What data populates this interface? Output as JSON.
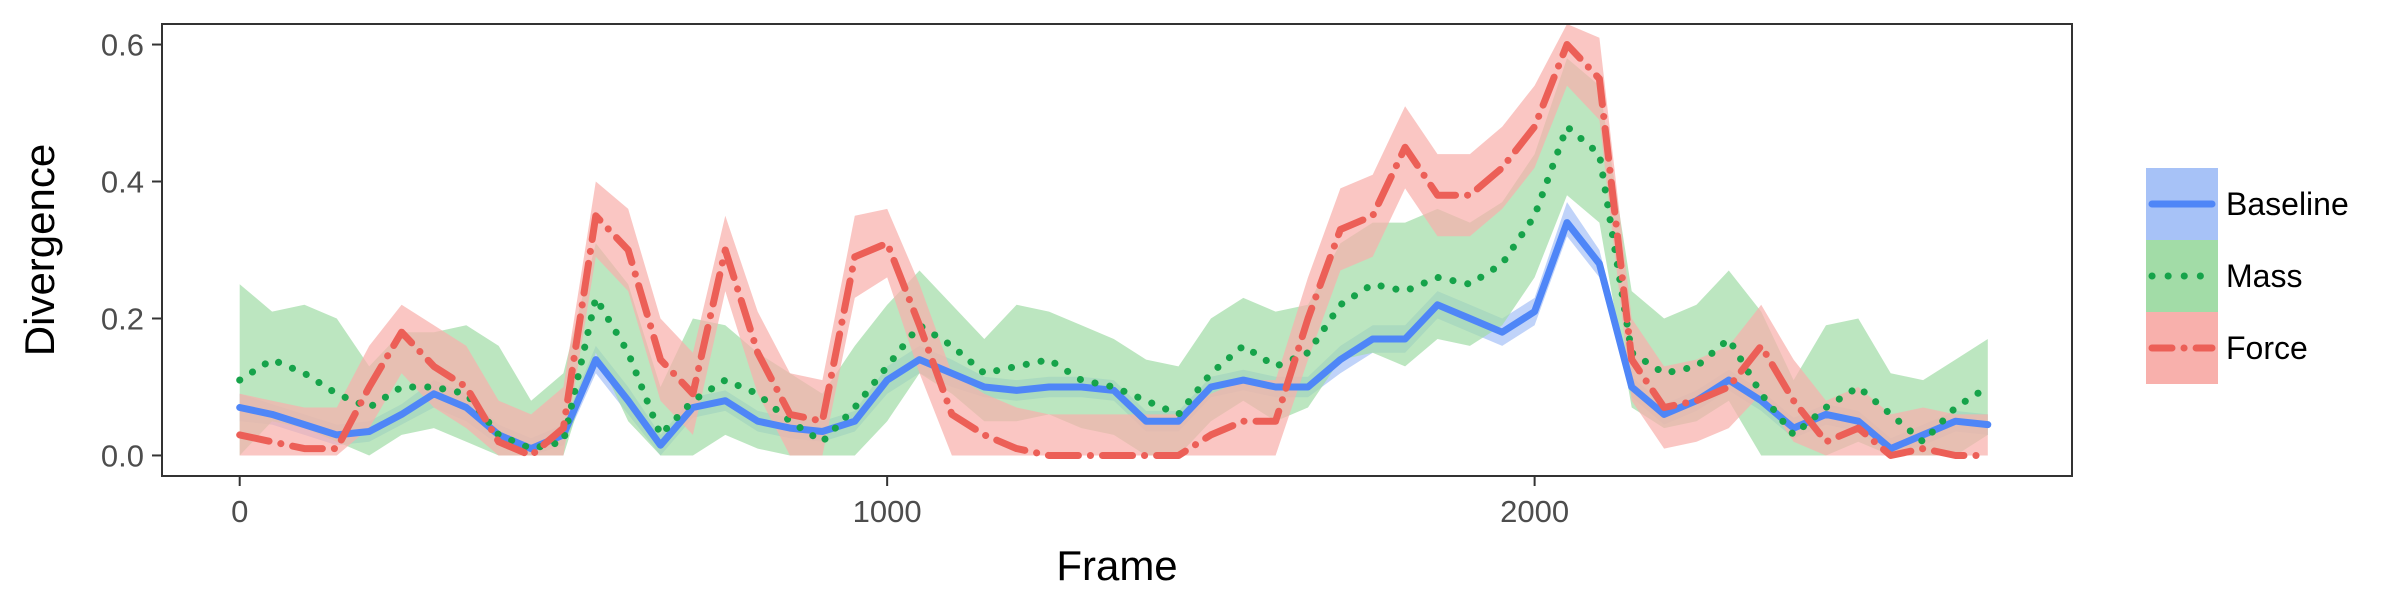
{
  "chart_data": {
    "type": "line",
    "xlabel": "Frame",
    "ylabel": "Divergence",
    "xlim": [
      -120,
      2830
    ],
    "ylim": [
      -0.03,
      0.63
    ],
    "x_ticks": [
      0,
      1000,
      2000
    ],
    "x_tick_labels": [
      "0",
      "1000",
      "2000"
    ],
    "y_ticks": [
      0.0,
      0.2,
      0.4,
      0.6
    ],
    "y_tick_labels": [
      "0.0",
      "0.2",
      "0.4",
      "0.6"
    ],
    "grid": false,
    "legend_position": "right",
    "x": [
      0,
      50,
      100,
      150,
      200,
      250,
      300,
      350,
      400,
      450,
      500,
      550,
      600,
      650,
      700,
      750,
      800,
      850,
      900,
      950,
      1000,
      1050,
      1100,
      1150,
      1200,
      1250,
      1300,
      1350,
      1400,
      1450,
      1500,
      1550,
      1600,
      1650,
      1700,
      1750,
      1800,
      1850,
      1900,
      1950,
      2000,
      2050,
      2100,
      2150,
      2200,
      2250,
      2300,
      2350,
      2400,
      2450,
      2500,
      2550,
      2600,
      2650,
      2700
    ],
    "series": [
      {
        "name": "Baseline",
        "color": "#4f86f7",
        "band_color": "#a7c2f7",
        "line_style": "solid",
        "values": [
          0.07,
          0.06,
          0.045,
          0.03,
          0.035,
          0.06,
          0.09,
          0.07,
          0.03,
          0.01,
          0.03,
          0.14,
          0.08,
          0.015,
          0.07,
          0.08,
          0.05,
          0.04,
          0.035,
          0.05,
          0.11,
          0.14,
          0.12,
          0.1,
          0.095,
          0.1,
          0.1,
          0.095,
          0.05,
          0.05,
          0.1,
          0.11,
          0.1,
          0.1,
          0.14,
          0.17,
          0.17,
          0.22,
          0.2,
          0.18,
          0.21,
          0.34,
          0.28,
          0.1,
          0.06,
          0.08,
          0.11,
          0.08,
          0.04,
          0.06,
          0.05,
          0.01,
          0.03,
          0.05,
          0.045
        ],
        "lower": [
          0.05,
          0.045,
          0.03,
          0.015,
          0.02,
          0.045,
          0.07,
          0.05,
          0.015,
          0.0,
          0.015,
          0.12,
          0.06,
          0.0,
          0.055,
          0.065,
          0.035,
          0.025,
          0.02,
          0.035,
          0.09,
          0.12,
          0.1,
          0.085,
          0.08,
          0.085,
          0.085,
          0.08,
          0.035,
          0.035,
          0.085,
          0.095,
          0.085,
          0.085,
          0.12,
          0.15,
          0.15,
          0.2,
          0.18,
          0.16,
          0.19,
          0.32,
          0.26,
          0.085,
          0.045,
          0.065,
          0.095,
          0.065,
          0.025,
          0.045,
          0.035,
          0.0,
          0.015,
          0.035,
          0.03
        ],
        "upper": [
          0.09,
          0.075,
          0.06,
          0.045,
          0.05,
          0.075,
          0.11,
          0.09,
          0.045,
          0.025,
          0.045,
          0.16,
          0.1,
          0.03,
          0.085,
          0.095,
          0.065,
          0.055,
          0.05,
          0.065,
          0.13,
          0.16,
          0.14,
          0.115,
          0.11,
          0.115,
          0.115,
          0.11,
          0.065,
          0.065,
          0.115,
          0.125,
          0.115,
          0.115,
          0.16,
          0.19,
          0.19,
          0.24,
          0.22,
          0.2,
          0.23,
          0.37,
          0.3,
          0.115,
          0.075,
          0.095,
          0.125,
          0.095,
          0.055,
          0.075,
          0.065,
          0.025,
          0.045,
          0.065,
          0.06
        ]
      },
      {
        "name": "Mass",
        "color": "#16a34a",
        "band_color": "#a2dca7",
        "line_style": "dotted",
        "values": [
          0.11,
          0.14,
          0.12,
          0.09,
          0.07,
          0.1,
          0.1,
          0.09,
          0.03,
          0.01,
          0.02,
          0.23,
          0.15,
          0.03,
          0.08,
          0.11,
          0.09,
          0.05,
          0.02,
          0.07,
          0.13,
          0.19,
          0.16,
          0.12,
          0.13,
          0.14,
          0.11,
          0.1,
          0.08,
          0.06,
          0.12,
          0.16,
          0.13,
          0.15,
          0.22,
          0.25,
          0.24,
          0.26,
          0.25,
          0.28,
          0.35,
          0.48,
          0.44,
          0.15,
          0.12,
          0.13,
          0.17,
          0.09,
          0.03,
          0.07,
          0.1,
          0.06,
          0.02,
          0.07,
          0.1
        ],
        "lower": [
          0.0,
          0.05,
          0.04,
          0.02,
          0.0,
          0.03,
          0.04,
          0.02,
          0.0,
          0.0,
          0.0,
          0.15,
          0.05,
          0.0,
          0.0,
          0.03,
          0.01,
          0.0,
          0.0,
          0.0,
          0.05,
          0.12,
          0.09,
          0.05,
          0.05,
          0.06,
          0.04,
          0.03,
          0.0,
          0.0,
          0.05,
          0.08,
          0.05,
          0.07,
          0.14,
          0.15,
          0.13,
          0.17,
          0.16,
          0.19,
          0.26,
          0.38,
          0.34,
          0.07,
          0.04,
          0.05,
          0.08,
          0.0,
          0.0,
          0.0,
          0.02,
          0.0,
          0.0,
          0.0,
          0.03
        ],
        "upper": [
          0.25,
          0.21,
          0.22,
          0.2,
          0.13,
          0.18,
          0.18,
          0.19,
          0.16,
          0.08,
          0.12,
          0.31,
          0.25,
          0.1,
          0.2,
          0.19,
          0.15,
          0.12,
          0.09,
          0.16,
          0.22,
          0.27,
          0.22,
          0.17,
          0.22,
          0.21,
          0.19,
          0.17,
          0.14,
          0.13,
          0.2,
          0.23,
          0.21,
          0.22,
          0.31,
          0.34,
          0.34,
          0.36,
          0.34,
          0.37,
          0.44,
          0.58,
          0.54,
          0.24,
          0.2,
          0.22,
          0.27,
          0.21,
          0.11,
          0.19,
          0.2,
          0.12,
          0.11,
          0.14,
          0.17
        ]
      },
      {
        "name": "Force",
        "color": "#ec5f57",
        "band_color": "#f8b0ac",
        "line_style": "dashdot",
        "values": [
          0.03,
          0.02,
          0.01,
          0.01,
          0.1,
          0.18,
          0.13,
          0.1,
          0.02,
          0.0,
          0.04,
          0.35,
          0.3,
          0.14,
          0.09,
          0.3,
          0.15,
          0.06,
          0.05,
          0.29,
          0.31,
          0.19,
          0.06,
          0.03,
          0.01,
          0.0,
          0.0,
          0.0,
          0.0,
          0.0,
          0.03,
          0.05,
          0.05,
          0.2,
          0.33,
          0.35,
          0.45,
          0.38,
          0.38,
          0.42,
          0.48,
          0.6,
          0.55,
          0.14,
          0.07,
          0.08,
          0.1,
          0.16,
          0.08,
          0.02,
          0.04,
          0.0,
          0.01,
          0.0,
          0.0
        ],
        "lower": [
          0.0,
          0.0,
          0.0,
          0.0,
          0.04,
          0.12,
          0.07,
          0.04,
          0.0,
          0.0,
          0.0,
          0.29,
          0.24,
          0.08,
          0.03,
          0.24,
          0.09,
          0.0,
          0.0,
          0.23,
          0.26,
          0.12,
          0.0,
          0.0,
          0.0,
          0.0,
          0.0,
          0.0,
          0.0,
          0.0,
          0.0,
          0.0,
          0.0,
          0.14,
          0.27,
          0.29,
          0.39,
          0.32,
          0.32,
          0.36,
          0.42,
          0.54,
          0.49,
          0.08,
          0.01,
          0.02,
          0.04,
          0.09,
          0.02,
          0.0,
          0.0,
          0.0,
          0.0,
          0.0,
          0.0
        ],
        "upper": [
          0.09,
          0.08,
          0.07,
          0.07,
          0.16,
          0.22,
          0.19,
          0.16,
          0.08,
          0.06,
          0.1,
          0.4,
          0.36,
          0.2,
          0.15,
          0.35,
          0.21,
          0.12,
          0.11,
          0.35,
          0.36,
          0.25,
          0.12,
          0.09,
          0.07,
          0.06,
          0.06,
          0.06,
          0.06,
          0.06,
          0.09,
          0.11,
          0.11,
          0.26,
          0.39,
          0.41,
          0.51,
          0.44,
          0.44,
          0.48,
          0.54,
          0.63,
          0.61,
          0.2,
          0.13,
          0.14,
          0.16,
          0.22,
          0.14,
          0.08,
          0.1,
          0.06,
          0.07,
          0.06,
          0.06
        ]
      }
    ]
  }
}
